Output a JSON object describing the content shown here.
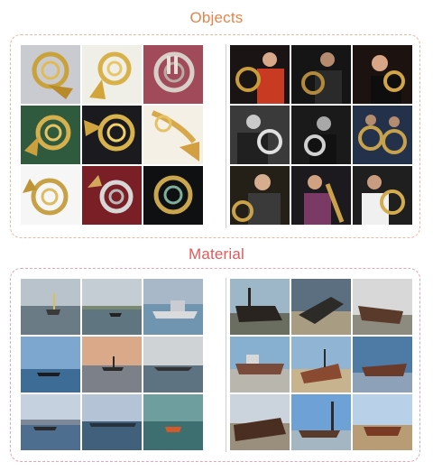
{
  "sections": [
    {
      "title": "Objects"
    },
    {
      "title": "Material"
    }
  ],
  "objects": {
    "left_tiles": [
      "horn-1",
      "horn-2",
      "horn-3",
      "horn-4",
      "horn-5",
      "horn-6",
      "horn-7",
      "horn-8",
      "horn-9"
    ],
    "right_tiles": [
      "player-1",
      "player-2",
      "player-3",
      "player-4",
      "player-5",
      "player-6",
      "player-7",
      "player-8",
      "player-9"
    ]
  },
  "material": {
    "left_tiles": [
      "ship-1",
      "ship-2",
      "ship-3",
      "ship-4",
      "ship-5",
      "ship-6",
      "ship-7",
      "ship-8",
      "ship-9"
    ],
    "right_tiles": [
      "wreck-1",
      "wreck-2",
      "wreck-3",
      "wreck-4",
      "wreck-5",
      "wreck-6",
      "wreck-7",
      "wreck-8",
      "wreck-9"
    ]
  }
}
